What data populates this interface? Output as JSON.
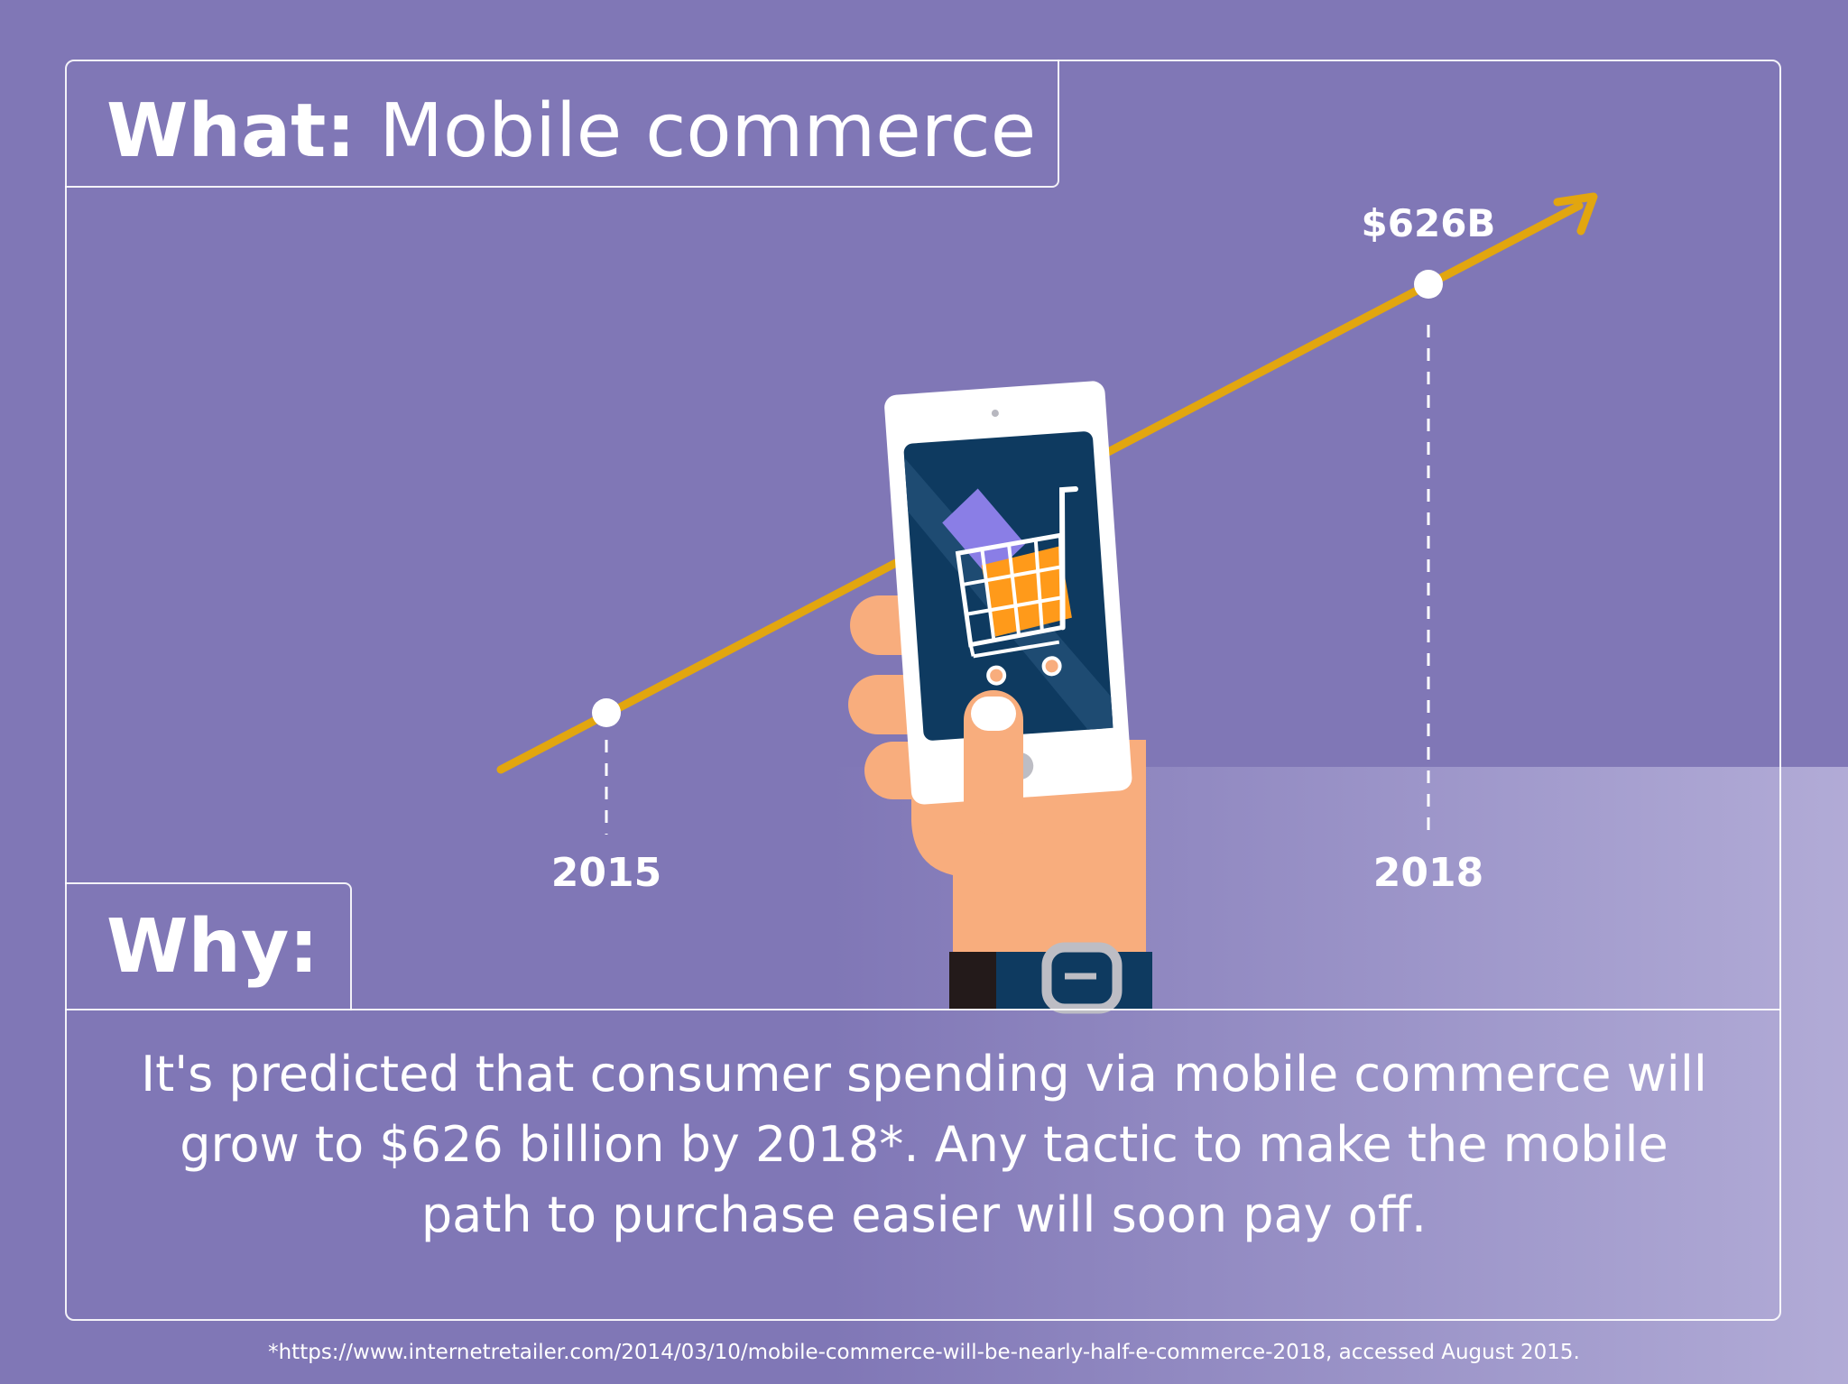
{
  "what": {
    "label": "What:",
    "topic": "Mobile commerce"
  },
  "why": {
    "label": "Why:"
  },
  "chart_data": {
    "type": "line",
    "categories": [
      "2015",
      "2018"
    ],
    "data_labels": [
      "",
      "$626B"
    ]
  },
  "body": "It's predicted that consumer spending via mobile commerce will grow to $626 billion by 2018*. Any tactic to make the mobile path to purchase easier will soon pay off.",
  "footnote": "*https://www.internetretailer.com/2014/03/10/mobile-commerce-will-be-nearly-half-e-commerce-2018, accessed August 2015.",
  "colors": {
    "background": "#8077b6",
    "trend_line": "#e2a60f",
    "phone_screen": "#0e3a60",
    "hand": "#f8ad7d",
    "cart_item_purple": "#8a7ee6",
    "cart_item_orange": "#ff9a1a"
  },
  "icons": [
    "trend-arrow-icon",
    "phone-icon",
    "shopping-cart-icon",
    "hand-icon",
    "wristwatch-icon"
  ]
}
